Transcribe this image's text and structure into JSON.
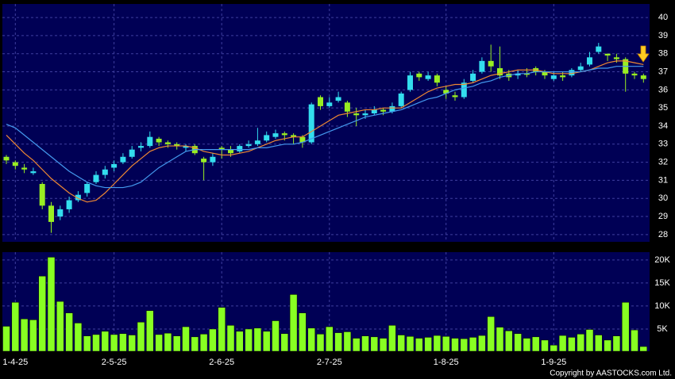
{
  "chart_data": {
    "type": "candlestick",
    "categories": [
      null,
      "1-4-25",
      null,
      null,
      null,
      null,
      null,
      null,
      null,
      null,
      null,
      null,
      "2-5-25",
      null,
      null,
      null,
      null,
      null,
      null,
      null,
      null,
      null,
      null,
      null,
      "2-6-25",
      null,
      null,
      null,
      null,
      null,
      null,
      null,
      null,
      null,
      null,
      null,
      "2-7-25",
      null,
      null,
      null,
      null,
      null,
      null,
      null,
      null,
      null,
      null,
      null,
      null,
      "1-8-25",
      null,
      null,
      null,
      null,
      null,
      null,
      null,
      null,
      null,
      null,
      null,
      "1-9-25",
      null,
      null,
      null,
      null,
      null,
      null,
      null,
      null,
      null,
      null
    ],
    "open": [
      32.3,
      32.0,
      31.7,
      31.4,
      30.8,
      29.6,
      29.0,
      29.4,
      29.9,
      30.3,
      30.9,
      31.3,
      31.7,
      32.0,
      32.3,
      32.8,
      32.9,
      33.3,
      33.1,
      33.0,
      32.8,
      32.9,
      32.2,
      32.0,
      32.8,
      32.7,
      32.6,
      32.9,
      33.0,
      33.2,
      33.4,
      33.6,
      33.5,
      33.4,
      33.1,
      35.6,
      35.1,
      35.4,
      35.3,
      34.7,
      34.6,
      34.7,
      34.9,
      34.8,
      35.1,
      36.0,
      36.9,
      36.6,
      36.8,
      36.0,
      35.7,
      35.6,
      36.5,
      37.0,
      37.6,
      37.2,
      36.9,
      36.8,
      36.9,
      37.2,
      37.0,
      36.6,
      36.8,
      36.8,
      37.1,
      37.4,
      38.1,
      38.0,
      37.8,
      37.7,
      36.9,
      36.8
    ],
    "high": [
      32.4,
      32.1,
      31.9,
      31.7,
      30.9,
      29.8,
      29.6,
      30.1,
      30.4,
      30.9,
      31.5,
      31.8,
      32.1,
      32.5,
      32.9,
      33.1,
      33.7,
      33.4,
      33.2,
      33.1,
      33.0,
      33.0,
      32.3,
      32.5,
      32.9,
      32.9,
      33.0,
      33.2,
      33.9,
      33.7,
      33.8,
      33.7,
      33.6,
      33.5,
      35.3,
      35.7,
      35.6,
      35.9,
      35.4,
      35.0,
      34.9,
      35.1,
      35.0,
      35.3,
      35.9,
      37.0,
      37.0,
      37.0,
      36.9,
      36.2,
      35.9,
      36.6,
      37.1,
      37.8,
      38.5,
      38.4,
      37.1,
      37.1,
      37.2,
      37.3,
      37.1,
      37.0,
      37.0,
      37.2,
      37.5,
      38.1,
      38.6,
      38.0,
      38.0,
      37.8,
      37.0,
      36.9
    ],
    "low": [
      31.9,
      31.6,
      31.4,
      31.3,
      29.4,
      28.1,
      28.8,
      29.2,
      29.8,
      30.1,
      30.8,
      31.1,
      31.5,
      31.9,
      32.2,
      32.6,
      32.8,
      32.9,
      32.8,
      32.7,
      32.6,
      32.4,
      31.0,
      31.8,
      32.2,
      32.3,
      32.5,
      32.8,
      32.9,
      33.1,
      33.3,
      33.2,
      33.0,
      32.8,
      33.0,
      34.9,
      35.0,
      35.3,
      34.5,
      34.0,
      34.4,
      34.6,
      34.6,
      34.7,
      35.0,
      35.9,
      36.5,
      36.5,
      36.2,
      35.5,
      35.4,
      35.5,
      36.4,
      36.9,
      37.0,
      36.6,
      36.5,
      36.6,
      36.7,
      36.8,
      36.6,
      36.5,
      36.5,
      36.7,
      37.0,
      37.3,
      38.0,
      37.6,
      37.5,
      35.9,
      36.6,
      36.4
    ],
    "close": [
      32.1,
      31.8,
      31.6,
      31.5,
      29.6,
      28.7,
      29.4,
      29.9,
      30.2,
      30.8,
      31.3,
      31.6,
      31.9,
      32.3,
      32.7,
      32.9,
      33.4,
      33.1,
      33.0,
      32.9,
      32.9,
      32.5,
      32.0,
      32.3,
      32.7,
      32.5,
      32.9,
      33.0,
      33.2,
      33.5,
      33.6,
      33.5,
      33.4,
      33.1,
      35.2,
      35.1,
      35.3,
      35.6,
      34.8,
      34.6,
      34.7,
      34.9,
      34.8,
      35.1,
      35.8,
      36.8,
      36.7,
      36.8,
      36.4,
      35.8,
      35.6,
      36.4,
      36.9,
      37.6,
      37.3,
      36.8,
      36.7,
      36.9,
      36.9,
      37.0,
      36.8,
      36.8,
      36.7,
      37.1,
      37.3,
      37.8,
      38.4,
      37.9,
      37.7,
      36.9,
      36.8,
      36.6
    ],
    "up_color": "#33ddee",
    "down_color": "#99ee22",
    "ma_lines": [
      {
        "color": "#ee8833",
        "values": [
          33.5,
          33.0,
          32.5,
          32.1,
          31.6,
          31.1,
          30.7,
          30.3,
          30.0,
          29.8,
          29.9,
          30.3,
          30.8,
          31.3,
          31.8,
          32.2,
          32.6,
          32.8,
          32.9,
          32.9,
          32.9,
          32.8,
          32.6,
          32.5,
          32.4,
          32.4,
          32.5,
          32.6,
          32.8,
          33.0,
          33.2,
          33.3,
          33.4,
          33.4,
          33.7,
          34.0,
          34.3,
          34.6,
          34.7,
          34.8,
          34.9,
          34.9,
          35.0,
          35.0,
          35.0,
          35.3,
          35.6,
          35.9,
          36.1,
          36.2,
          36.3,
          36.3,
          36.4,
          36.6,
          36.8,
          36.9,
          37.0,
          37.1,
          37.1,
          37.1,
          37.0,
          36.9,
          36.9,
          36.9,
          37.0,
          37.1,
          37.3,
          37.5,
          37.6,
          37.6,
          37.5,
          37.4
        ]
      },
      {
        "color": "#4499ee",
        "values": [
          34.1,
          33.9,
          33.5,
          33.1,
          32.7,
          32.3,
          31.9,
          31.5,
          31.2,
          30.9,
          30.7,
          30.6,
          30.6,
          30.6,
          30.7,
          30.9,
          31.3,
          31.7,
          32.0,
          32.3,
          32.6,
          32.7,
          32.7,
          32.7,
          32.7,
          32.7,
          32.7,
          32.7,
          32.8,
          32.8,
          32.9,
          33.0,
          33.0,
          33.1,
          33.3,
          33.5,
          33.7,
          33.9,
          34.1,
          34.3,
          34.5,
          34.6,
          34.7,
          34.8,
          34.9,
          35.1,
          35.3,
          35.5,
          35.6,
          35.8,
          36.0,
          36.1,
          36.2,
          36.4,
          36.5,
          36.7,
          36.8,
          36.9,
          36.9,
          37.0,
          37.0,
          37.0,
          37.0,
          37.0,
          37.0,
          37.1,
          37.2,
          37.2,
          37.3,
          37.3,
          37.3,
          37.3
        ]
      }
    ],
    "ylim": [
      27.6,
      40.75
    ],
    "yticks": [
      28,
      29,
      30,
      31,
      32,
      33,
      34,
      35,
      36,
      37,
      38,
      39,
      40
    ],
    "grid": true,
    "volume": {
      "color": "#88ff22",
      "ylim": [
        0,
        21700
      ],
      "yticks": [
        {
          "value": 5000,
          "label": "5K"
        },
        {
          "value": 10000,
          "label": "10K"
        },
        {
          "value": 15000,
          "label": "15K"
        },
        {
          "value": 20000,
          "label": "20K"
        }
      ],
      "values": [
        5600,
        10800,
        7200,
        7000,
        16500,
        20600,
        11000,
        8500,
        6300,
        3500,
        3800,
        4500,
        3800,
        4000,
        3700,
        6500,
        9000,
        3800,
        4100,
        3500,
        5500,
        3300,
        3900,
        5000,
        9700,
        5800,
        4500,
        5000,
        5200,
        4500,
        6800,
        4000,
        12500,
        8500,
        5200,
        3900,
        5500,
        4200,
        4400,
        3000,
        3500,
        3300,
        3000,
        5800,
        3700,
        3400,
        3000,
        3200,
        3600,
        3400,
        3000,
        2900,
        3200,
        3600,
        7700,
        5400,
        4600,
        4000,
        3000,
        3300,
        2600,
        1500,
        3600,
        3200,
        3900,
        4900,
        3700,
        2600,
        3500,
        10800,
        4800,
        1200
      ]
    },
    "copyright": "Copyright by AASTOCKS.com Ltd."
  }
}
